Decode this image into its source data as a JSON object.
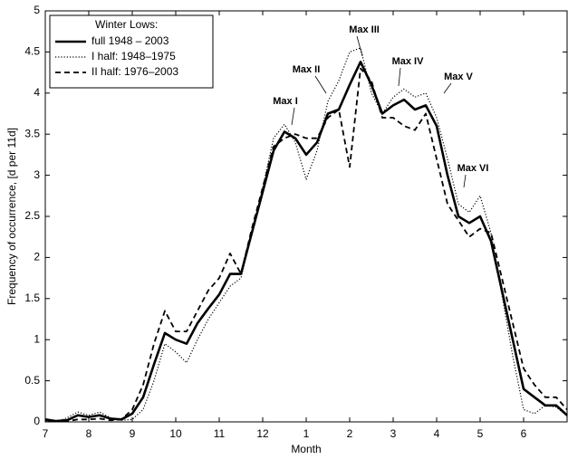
{
  "chart_data": {
    "type": "line",
    "ylabel": "Frequency of occurrence, [d per 11d]",
    "xlabel": "Month",
    "legend_title": "Winter Lows:",
    "legend": "upper left",
    "grid": false,
    "xlim": [
      0,
      12
    ],
    "ylim": [
      0,
      5
    ],
    "xticks": [
      {
        "value": 0,
        "label": "7"
      },
      {
        "value": 1,
        "label": "8"
      },
      {
        "value": 2,
        "label": "9"
      },
      {
        "value": 3,
        "label": "10"
      },
      {
        "value": 4,
        "label": "11"
      },
      {
        "value": 5,
        "label": "12"
      },
      {
        "value": 6,
        "label": "1"
      },
      {
        "value": 7,
        "label": "2"
      },
      {
        "value": 8,
        "label": "3"
      },
      {
        "value": 9,
        "label": "4"
      },
      {
        "value": 10,
        "label": "5"
      },
      {
        "value": 11,
        "label": "6"
      }
    ],
    "yticks": [
      0,
      0.5,
      1,
      1.5,
      2,
      2.5,
      3,
      3.5,
      4,
      4.5,
      5
    ],
    "annotations": [
      "Max I",
      "Max II",
      "Max III",
      "Max IV",
      "Max V",
      "Max VI"
    ],
    "x": [
      0,
      0.25,
      0.5,
      0.75,
      1,
      1.25,
      1.5,
      1.75,
      2,
      2.25,
      2.5,
      2.75,
      3,
      3.25,
      3.5,
      3.75,
      4,
      4.25,
      4.5,
      4.75,
      5,
      5.25,
      5.5,
      5.75,
      6,
      6.25,
      6.5,
      6.75,
      7,
      7.25,
      7.5,
      7.75,
      8,
      8.25,
      8.5,
      8.75,
      9,
      9.25,
      9.5,
      9.75,
      10,
      10.25,
      10.5,
      10.75,
      11,
      11.25,
      11.5,
      11.75,
      12
    ],
    "series": [
      {
        "name": "full 1948 – 2003",
        "color": "#000000",
        "style": "solid",
        "values": [
          0.03,
          0.01,
          0.02,
          0.08,
          0.06,
          0.08,
          0.04,
          0.03,
          0.1,
          0.3,
          0.7,
          1.08,
          1.0,
          0.95,
          1.2,
          1.38,
          1.55,
          1.8,
          1.8,
          2.3,
          2.8,
          3.3,
          3.53,
          3.45,
          3.25,
          3.4,
          3.75,
          3.8,
          4.1,
          4.38,
          4.1,
          3.75,
          3.85,
          3.92,
          3.8,
          3.85,
          3.6,
          3.0,
          2.5,
          2.42,
          2.5,
          2.2,
          1.6,
          1.0,
          0.4,
          0.3,
          0.2,
          0.2,
          0.08
        ]
      },
      {
        "name": "I half: 1948–1975",
        "color": "#000000",
        "style": "dotted",
        "values": [
          0.01,
          0.0,
          0.05,
          0.12,
          0.08,
          0.12,
          0.05,
          0.02,
          0.03,
          0.15,
          0.5,
          0.95,
          0.85,
          0.72,
          1.0,
          1.25,
          1.45,
          1.65,
          1.75,
          2.3,
          2.85,
          3.45,
          3.62,
          3.4,
          2.95,
          3.3,
          3.9,
          4.15,
          4.5,
          4.55,
          4.0,
          3.75,
          3.95,
          4.05,
          3.95,
          4.0,
          3.7,
          3.2,
          2.65,
          2.55,
          2.75,
          2.3,
          1.55,
          0.8,
          0.15,
          0.1,
          0.2,
          0.18,
          0.07
        ]
      },
      {
        "name": "II half: 1976–2003",
        "color": "#000000",
        "style": "dashed",
        "values": [
          0.02,
          0.01,
          0.01,
          0.03,
          0.03,
          0.04,
          0.02,
          0.03,
          0.15,
          0.45,
          0.95,
          1.35,
          1.1,
          1.1,
          1.35,
          1.6,
          1.75,
          2.05,
          1.8,
          2.35,
          2.85,
          3.35,
          3.45,
          3.5,
          3.45,
          3.45,
          3.7,
          3.8,
          3.1,
          4.3,
          4.15,
          3.7,
          3.7,
          3.6,
          3.55,
          3.75,
          3.2,
          2.65,
          2.45,
          2.25,
          2.35,
          2.3,
          1.75,
          1.2,
          0.65,
          0.45,
          0.3,
          0.3,
          0.15
        ]
      }
    ]
  }
}
